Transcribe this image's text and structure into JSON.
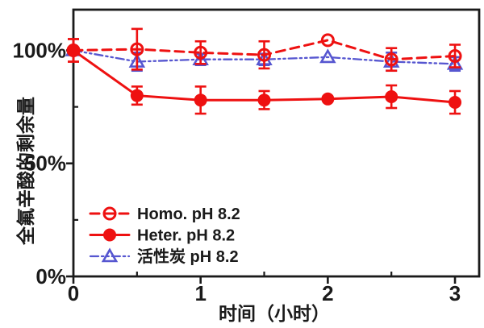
{
  "figure": {
    "background": "#ffffff",
    "axis_color": "#1a1a1a"
  },
  "chart_data": {
    "type": "line",
    "title": "",
    "xlabel": "时间（小时）",
    "ylabel": "全氟辛酸的剩余量",
    "xlim": [
      0,
      3.19
    ],
    "ylim": [
      0,
      118
    ],
    "grid": false,
    "frame": "box",
    "legend_position": "lower-left-inside",
    "x_major_ticks": [
      0,
      1,
      2,
      3
    ],
    "x_minor_ticks": [
      0.5,
      1.5,
      2.5
    ],
    "y_major_ticks": [
      {
        "value": 0,
        "label": "0%"
      },
      {
        "value": 50,
        "label": "50%"
      },
      {
        "value": 100,
        "label": "100%"
      }
    ],
    "y_minor_ticks": [
      25,
      75
    ],
    "x": [
      0,
      0.5,
      1,
      1.5,
      2,
      2.5,
      3
    ],
    "series": [
      {
        "name": "活性炭 pH 8.2",
        "color": "#5656d0",
        "line_style": "dash-dot-dot",
        "line_width": 2.3,
        "marker": "open-triangle",
        "values": [
          100,
          95,
          96,
          96,
          97,
          95,
          94
        ],
        "errors": [
          0,
          4,
          2.5,
          2.5,
          0,
          4,
          3
        ]
      },
      {
        "name": "Homo. pH 8.2",
        "color": "#ee1111",
        "line_style": "dashed",
        "line_width": 3,
        "marker": "open-circle",
        "values": [
          100,
          100.5,
          99,
          98,
          104.5,
          96,
          97.5
        ],
        "errors": [
          5,
          9,
          5,
          6,
          0,
          5,
          5
        ]
      },
      {
        "name": "Heter. pH 8.2",
        "color": "#ee1111",
        "line_style": "solid",
        "line_width": 3,
        "marker": "filled-circle",
        "values": [
          100,
          80,
          78,
          78,
          78.5,
          79.5,
          77
        ],
        "errors": [
          5,
          4,
          6,
          4,
          0,
          5,
          5
        ]
      }
    ],
    "legend_order": [
      "Homo. pH 8.2",
      "Heter. pH 8.2",
      "活性炭 pH 8.2"
    ]
  }
}
